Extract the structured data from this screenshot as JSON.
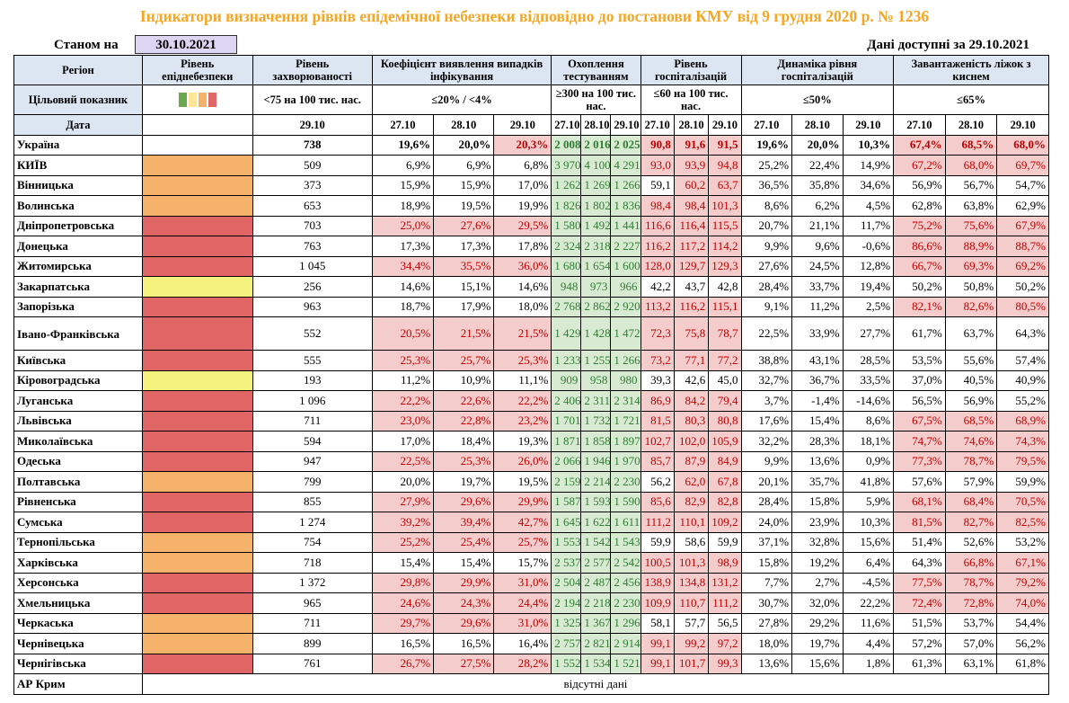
{
  "title": "Індикатори визначення рівнів епідемічної небезпеки відповідно до постанови КМУ від 9 грудня 2020 р. № 1236",
  "as_of_label": "Станом на",
  "as_of_date": "30.10.2021",
  "available_text": "Дані доступні за 29.10.2021",
  "headers": {
    "region": "Регіон",
    "level": "Рівень епіднебезпеки",
    "incidence": "Рівень захворюваності",
    "detection": "Коефіцієнт виявлення випадків інфікування",
    "testing": "Охоплення тестуванням",
    "hosp": "Рівень госпіталізацій",
    "dynamics": "Динаміка рівня госпіталізацій",
    "beds": "Завантаженість ліжок з киснем"
  },
  "target_row": {
    "label": "Цільовий показник",
    "incidence": "<75 на 100 тис. нас.",
    "detection": "≤20% / <4%",
    "testing": "≥300 на 100 тис. нас.",
    "hosp": "≤60 на 100 тис. нас.",
    "dynamics": "≤50%",
    "beds": "≤65%"
  },
  "date_row": {
    "label": "Дата",
    "incidence": "29.10",
    "d1": "27.10",
    "d2": "28.10",
    "d3": "29.10"
  },
  "level_colors": {
    "green": "#70ad47",
    "yellow": "#f3f37e",
    "orange": "#f6b26b",
    "red": "#e06666"
  },
  "legend_swatches": [
    "#6aa84f",
    "#ffe599",
    "#f6b26b",
    "#e06666"
  ],
  "ukraine": {
    "name": "Україна",
    "incidence": "738",
    "detection": [
      "19,6%",
      "20,0%",
      "20,3%"
    ],
    "testing": [
      "2 008",
      "2 016",
      "2 025"
    ],
    "hosp": [
      "90,8",
      "91,6",
      "91,5"
    ],
    "dynamics": [
      "19,6%",
      "20,0%",
      "10,3%"
    ],
    "beds": [
      "67,4%",
      "68,5%",
      "68,0%"
    ]
  },
  "regions": [
    {
      "name": "КИЇВ",
      "level": "orange",
      "incidence": "509",
      "detection": [
        "6,9%",
        "6,9%",
        "6,8%"
      ],
      "testing": [
        "3 970",
        "4 100",
        "4 291"
      ],
      "hosp": [
        "93,0",
        "93,9",
        "94,8"
      ],
      "dynamics": [
        "25,2%",
        "22,4%",
        "14,9%"
      ],
      "beds": [
        "67,2%",
        "68,0%",
        "69,7%"
      ]
    },
    {
      "name": "Вінницька",
      "level": "orange",
      "incidence": "373",
      "detection": [
        "15,9%",
        "15,9%",
        "17,0%"
      ],
      "testing": [
        "1 262",
        "1 269",
        "1 266"
      ],
      "hosp": [
        "59,1",
        "60,2",
        "63,7"
      ],
      "dynamics": [
        "36,5%",
        "35,8%",
        "34,6%"
      ],
      "beds": [
        "56,9%",
        "56,7%",
        "54,7%"
      ]
    },
    {
      "name": "Волинська",
      "level": "orange",
      "incidence": "653",
      "detection": [
        "18,9%",
        "19,5%",
        "19,9%"
      ],
      "testing": [
        "1 826",
        "1 802",
        "1 836"
      ],
      "hosp": [
        "98,4",
        "98,4",
        "101,3"
      ],
      "dynamics": [
        "8,6%",
        "6,2%",
        "4,5%"
      ],
      "beds": [
        "62,8%",
        "63,8%",
        "62,9%"
      ]
    },
    {
      "name": "Дніпропетровська",
      "level": "red",
      "incidence": "703",
      "detection": [
        "25,0%",
        "27,6%",
        "29,5%"
      ],
      "testing": [
        "1 580",
        "1 492",
        "1 441"
      ],
      "hosp": [
        "116,6",
        "116,4",
        "115,5"
      ],
      "dynamics": [
        "20,7%",
        "21,1%",
        "11,7%"
      ],
      "beds": [
        "75,2%",
        "75,6%",
        "67,9%"
      ]
    },
    {
      "name": "Донецька",
      "level": "red",
      "incidence": "763",
      "detection": [
        "17,3%",
        "17,3%",
        "17,8%"
      ],
      "testing": [
        "2 324",
        "2 318",
        "2 227"
      ],
      "hosp": [
        "116,2",
        "117,2",
        "114,2"
      ],
      "dynamics": [
        "9,9%",
        "9,6%",
        "-0,6%"
      ],
      "beds": [
        "86,6%",
        "88,9%",
        "88,7%"
      ]
    },
    {
      "name": "Житомирська",
      "level": "red",
      "incidence": "1 045",
      "detection": [
        "34,4%",
        "35,5%",
        "36,0%"
      ],
      "testing": [
        "1 680",
        "1 654",
        "1 600"
      ],
      "hosp": [
        "128,0",
        "129,7",
        "129,3"
      ],
      "dynamics": [
        "27,6%",
        "24,5%",
        "12,8%"
      ],
      "beds": [
        "66,7%",
        "69,3%",
        "69,2%"
      ]
    },
    {
      "name": "Закарпатська",
      "level": "yellow",
      "incidence": "256",
      "detection": [
        "14,6%",
        "15,1%",
        "14,6%"
      ],
      "testing": [
        "948",
        "973",
        "966"
      ],
      "hosp": [
        "42,2",
        "43,7",
        "42,8"
      ],
      "dynamics": [
        "28,4%",
        "33,7%",
        "19,4%"
      ],
      "beds": [
        "50,2%",
        "50,8%",
        "50,2%"
      ]
    },
    {
      "name": "Запорізька",
      "level": "red",
      "incidence": "963",
      "detection": [
        "18,7%",
        "17,9%",
        "18,0%"
      ],
      "testing": [
        "2 768",
        "2 862",
        "2 920"
      ],
      "hosp": [
        "113,2",
        "116,2",
        "115,1"
      ],
      "dynamics": [
        "9,1%",
        "11,2%",
        "2,5%"
      ],
      "beds": [
        "82,1%",
        "82,6%",
        "80,5%"
      ]
    },
    {
      "name": "Івано-Франківська",
      "level": "red",
      "incidence": "552",
      "detection": [
        "20,5%",
        "21,5%",
        "21,5%"
      ],
      "testing": [
        "1 429",
        "1 428",
        "1 472"
      ],
      "hosp": [
        "72,3",
        "75,8",
        "78,7"
      ],
      "dynamics": [
        "22,5%",
        "33,9%",
        "27,7%"
      ],
      "beds": [
        "61,7%",
        "63,7%",
        "64,3%"
      ]
    },
    {
      "name": "Київська",
      "level": "red",
      "incidence": "555",
      "detection": [
        "25,3%",
        "25,7%",
        "25,3%"
      ],
      "testing": [
        "1 233",
        "1 255",
        "1 266"
      ],
      "hosp": [
        "73,2",
        "77,1",
        "77,2"
      ],
      "dynamics": [
        "38,8%",
        "43,1%",
        "28,5%"
      ],
      "beds": [
        "53,5%",
        "55,6%",
        "57,4%"
      ]
    },
    {
      "name": "Кіровоградська",
      "level": "yellow",
      "incidence": "193",
      "detection": [
        "11,2%",
        "10,9%",
        "11,1%"
      ],
      "testing": [
        "909",
        "958",
        "980"
      ],
      "hosp": [
        "39,3",
        "42,6",
        "45,0"
      ],
      "dynamics": [
        "32,7%",
        "36,7%",
        "33,5%"
      ],
      "beds": [
        "37,0%",
        "40,5%",
        "40,9%"
      ]
    },
    {
      "name": "Луганська",
      "level": "red",
      "incidence": "1 096",
      "detection": [
        "22,2%",
        "22,6%",
        "22,2%"
      ],
      "testing": [
        "2 406",
        "2 311",
        "2 314"
      ],
      "hosp": [
        "86,9",
        "84,2",
        "79,4"
      ],
      "dynamics": [
        "3,7%",
        "-1,4%",
        "-14,6%"
      ],
      "beds": [
        "56,5%",
        "56,9%",
        "55,2%"
      ]
    },
    {
      "name": "Львівська",
      "level": "red",
      "incidence": "711",
      "detection": [
        "23,0%",
        "22,8%",
        "23,2%"
      ],
      "testing": [
        "1 701",
        "1 732",
        "1 721"
      ],
      "hosp": [
        "81,5",
        "80,3",
        "80,8"
      ],
      "dynamics": [
        "17,6%",
        "15,4%",
        "8,6%"
      ],
      "beds": [
        "67,5%",
        "68,5%",
        "68,9%"
      ]
    },
    {
      "name": "Миколаївська",
      "level": "red",
      "incidence": "594",
      "detection": [
        "17,0%",
        "18,4%",
        "19,3%"
      ],
      "testing": [
        "1 871",
        "1 858",
        "1 897"
      ],
      "hosp": [
        "102,7",
        "102,0",
        "105,9"
      ],
      "dynamics": [
        "32,2%",
        "28,3%",
        "18,1%"
      ],
      "beds": [
        "74,7%",
        "74,6%",
        "74,3%"
      ]
    },
    {
      "name": "Одеська",
      "level": "red",
      "incidence": "947",
      "detection": [
        "22,5%",
        "25,3%",
        "26,0%"
      ],
      "testing": [
        "2 066",
        "1 946",
        "1 970"
      ],
      "hosp": [
        "85,7",
        "87,9",
        "84,9"
      ],
      "dynamics": [
        "9,9%",
        "13,6%",
        "0,9%"
      ],
      "beds": [
        "77,3%",
        "78,7%",
        "79,5%"
      ]
    },
    {
      "name": "Полтавська",
      "level": "orange",
      "incidence": "799",
      "detection": [
        "20,0%",
        "19,7%",
        "19,5%"
      ],
      "testing": [
        "2 159",
        "2 214",
        "2 230"
      ],
      "hosp": [
        "56,2",
        "62,0",
        "67,8"
      ],
      "dynamics": [
        "20,1%",
        "35,7%",
        "41,8%"
      ],
      "beds": [
        "57,6%",
        "57,9%",
        "59,9%"
      ]
    },
    {
      "name": "Рівненська",
      "level": "red",
      "incidence": "855",
      "detection": [
        "27,9%",
        "29,6%",
        "29,9%"
      ],
      "testing": [
        "1 587",
        "1 593",
        "1 590"
      ],
      "hosp": [
        "85,6",
        "82,9",
        "82,8"
      ],
      "dynamics": [
        "28,4%",
        "15,8%",
        "5,9%"
      ],
      "beds": [
        "68,1%",
        "68,4%",
        "70,5%"
      ]
    },
    {
      "name": "Сумська",
      "level": "red",
      "incidence": "1 274",
      "detection": [
        "39,2%",
        "39,4%",
        "42,7%"
      ],
      "testing": [
        "1 645",
        "1 622",
        "1 611"
      ],
      "hosp": [
        "111,2",
        "110,1",
        "109,2"
      ],
      "dynamics": [
        "24,0%",
        "23,9%",
        "10,3%"
      ],
      "beds": [
        "81,5%",
        "82,7%",
        "82,5%"
      ]
    },
    {
      "name": "Тернопільська",
      "level": "orange",
      "incidence": "754",
      "detection": [
        "25,2%",
        "25,4%",
        "25,7%"
      ],
      "testing": [
        "1 553",
        "1 542",
        "1 543"
      ],
      "hosp": [
        "59,9",
        "58,6",
        "59,9"
      ],
      "dynamics": [
        "37,1%",
        "32,8%",
        "15,6%"
      ],
      "beds": [
        "51,4%",
        "52,6%",
        "53,2%"
      ]
    },
    {
      "name": "Харківська",
      "level": "orange",
      "incidence": "718",
      "detection": [
        "15,4%",
        "15,4%",
        "15,7%"
      ],
      "testing": [
        "2 537",
        "2 577",
        "2 542"
      ],
      "hosp": [
        "100,5",
        "101,3",
        "98,9"
      ],
      "dynamics": [
        "15,8%",
        "19,2%",
        "6,4%"
      ],
      "beds": [
        "64,3%",
        "66,8%",
        "67,1%"
      ]
    },
    {
      "name": "Херсонська",
      "level": "red",
      "incidence": "1 372",
      "detection": [
        "29,8%",
        "29,9%",
        "31,0%"
      ],
      "testing": [
        "2 504",
        "2 487",
        "2 456"
      ],
      "hosp": [
        "138,9",
        "134,8",
        "131,2"
      ],
      "dynamics": [
        "7,7%",
        "2,7%",
        "-4,5%"
      ],
      "beds": [
        "77,5%",
        "78,7%",
        "79,2%"
      ]
    },
    {
      "name": "Хмельницька",
      "level": "red",
      "incidence": "965",
      "detection": [
        "24,6%",
        "24,3%",
        "24,4%"
      ],
      "testing": [
        "2 194",
        "2 218",
        "2 230"
      ],
      "hosp": [
        "109,9",
        "110,7",
        "111,2"
      ],
      "dynamics": [
        "30,7%",
        "32,0%",
        "22,2%"
      ],
      "beds": [
        "72,4%",
        "72,8%",
        "74,0%"
      ]
    },
    {
      "name": "Черкаська",
      "level": "orange",
      "incidence": "711",
      "detection": [
        "29,7%",
        "29,6%",
        "31,0%"
      ],
      "testing": [
        "1 325",
        "1 367",
        "1 296"
      ],
      "hosp": [
        "58,1",
        "57,7",
        "56,5"
      ],
      "dynamics": [
        "27,8%",
        "29,2%",
        "11,6%"
      ],
      "beds": [
        "51,5%",
        "53,7%",
        "54,4%"
      ]
    },
    {
      "name": "Чернівецька",
      "level": "orange",
      "incidence": "899",
      "detection": [
        "16,5%",
        "16,5%",
        "16,4%"
      ],
      "testing": [
        "2 757",
        "2 821",
        "2 914"
      ],
      "hosp": [
        "99,1",
        "99,2",
        "97,2"
      ],
      "dynamics": [
        "18,0%",
        "19,7%",
        "4,4%"
      ],
      "beds": [
        "57,2%",
        "57,0%",
        "56,2%"
      ]
    },
    {
      "name": "Чернігівська",
      "level": "red",
      "incidence": "761",
      "detection": [
        "26,7%",
        "27,5%",
        "28,2%"
      ],
      "testing": [
        "1 552",
        "1 534",
        "1 521"
      ],
      "hosp": [
        "99,1",
        "101,7",
        "99,3"
      ],
      "dynamics": [
        "13,6%",
        "15,6%",
        "1,8%"
      ],
      "beds": [
        "61,3%",
        "63,1%",
        "61,8%"
      ]
    }
  ],
  "crimea": {
    "name": "АР Крим",
    "note": "відсутні дані"
  }
}
